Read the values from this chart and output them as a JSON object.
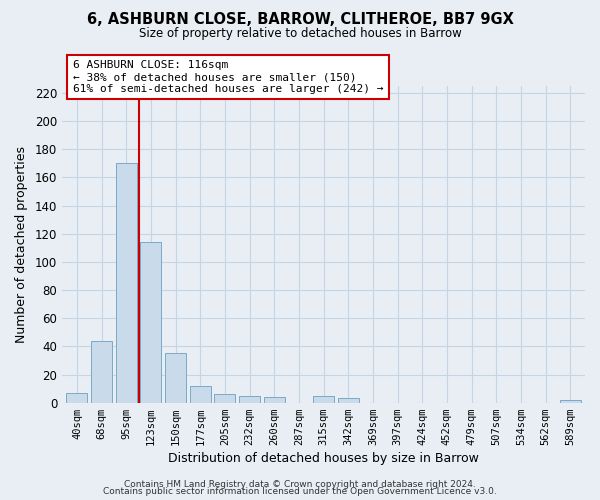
{
  "title": "6, ASHBURN CLOSE, BARROW, CLITHEROE, BB7 9GX",
  "subtitle": "Size of property relative to detached houses in Barrow",
  "xlabel": "Distribution of detached houses by size in Barrow",
  "ylabel": "Number of detached properties",
  "bar_labels": [
    "40sqm",
    "68sqm",
    "95sqm",
    "123sqm",
    "150sqm",
    "177sqm",
    "205sqm",
    "232sqm",
    "260sqm",
    "287sqm",
    "315sqm",
    "342sqm",
    "369sqm",
    "397sqm",
    "424sqm",
    "452sqm",
    "479sqm",
    "507sqm",
    "534sqm",
    "562sqm",
    "589sqm"
  ],
  "bar_values": [
    7,
    44,
    170,
    114,
    35,
    12,
    6,
    5,
    4,
    0,
    5,
    3,
    0,
    0,
    0,
    0,
    0,
    0,
    0,
    0,
    2
  ],
  "bar_color": "#c9daea",
  "bar_edge_color": "#7aaac8",
  "vline_color": "#cc0000",
  "vline_position": 2.5,
  "annotation_line1": "6 ASHBURN CLOSE: 116sqm",
  "annotation_line2": "← 38% of detached houses are smaller (150)",
  "annotation_line3": "61% of semi-detached houses are larger (242) →",
  "annotation_box_color": "white",
  "annotation_box_edge": "#cc0000",
  "ylim": [
    0,
    225
  ],
  "yticks": [
    0,
    20,
    40,
    60,
    80,
    100,
    120,
    140,
    160,
    180,
    200,
    220
  ],
  "footer1": "Contains HM Land Registry data © Crown copyright and database right 2024.",
  "footer2": "Contains public sector information licensed under the Open Government Licence v3.0.",
  "background_color": "#e8eef4",
  "plot_background": "#e8eef4",
  "grid_color": "#c5d5e4"
}
